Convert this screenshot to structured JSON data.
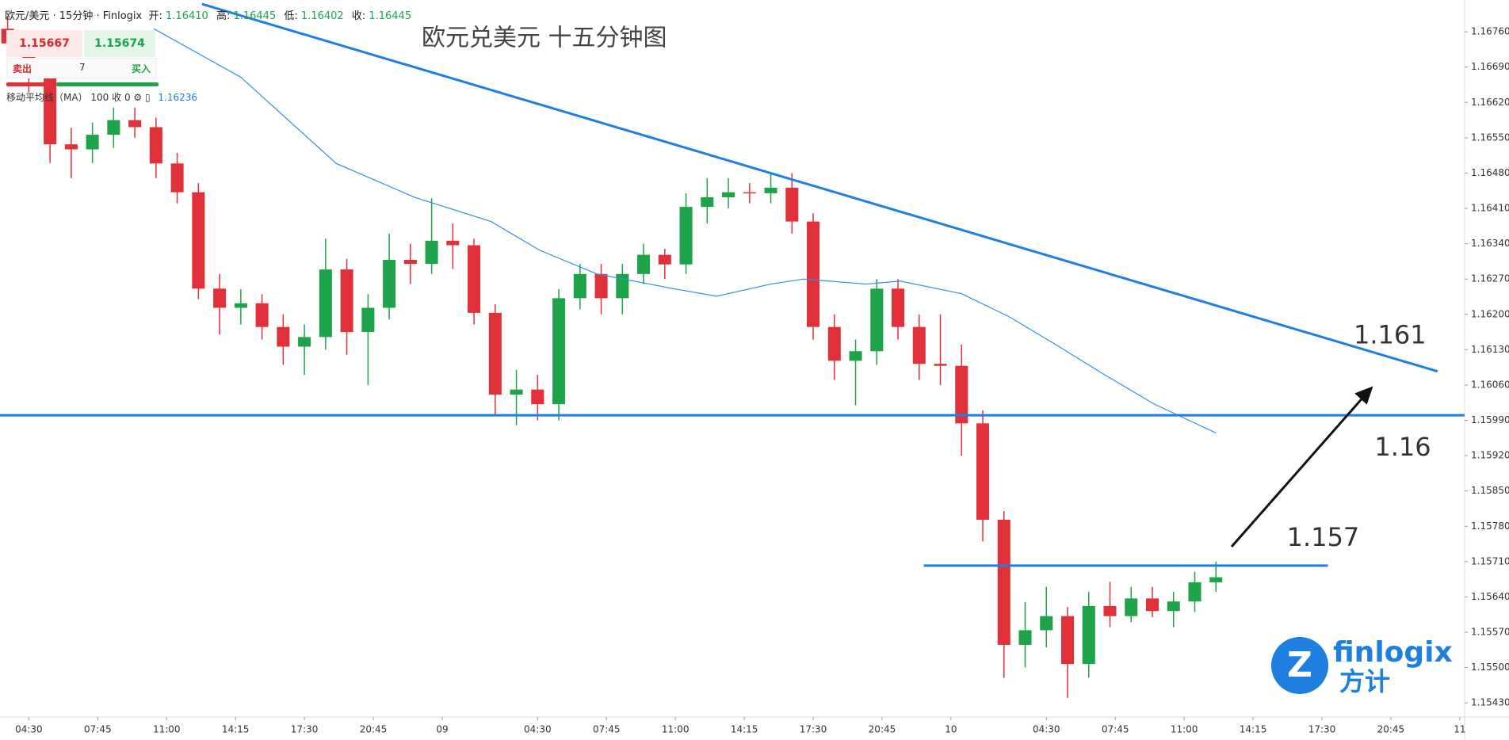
{
  "header": {
    "symbol": "欧元/美元 · 15分钟 · Finlogix",
    "open_label": "开:",
    "open": "1.16410",
    "high_label": "高:",
    "high": "1.16445",
    "low_label": "低:",
    "low": "1.16402",
    "close_label": "收:",
    "close": "1.16445"
  },
  "trade": {
    "sell_price": "1.15667",
    "buy_price": "1.15674",
    "sell": "卖出",
    "quantity": 7,
    "buy": "买入"
  },
  "indicator": {
    "name": "移动平均线（MA）",
    "params": "100 收 0",
    "value": "1.16236"
  },
  "logo": {
    "brand": "finlogix",
    "brand_cn": "方计"
  },
  "chart_data": {
    "type": "candlestick",
    "title": "欧元兑美元 十五分钟图",
    "xlim": [
      3.14,
      72.23
    ],
    "ylim": [
      1.15402,
      1.16823
    ],
    "xticks": [
      {
        "value": 4.5,
        "label": "04:30"
      },
      {
        "value": 7.75,
        "label": "07:45"
      },
      {
        "value": 11,
        "label": "11:00"
      },
      {
        "value": 14.25,
        "label": "14:15"
      },
      {
        "value": 17.5,
        "label": "17:30"
      },
      {
        "value": 20.75,
        "label": "20:45"
      },
      {
        "value": 24,
        "label": "09"
      },
      {
        "value": 28.5,
        "label": "04:30"
      },
      {
        "value": 31.75,
        "label": "07:45"
      },
      {
        "value": 35,
        "label": "11:00"
      },
      {
        "value": 38.25,
        "label": "14:15"
      },
      {
        "value": 41.5,
        "label": "17:30"
      },
      {
        "value": 44.75,
        "label": "20:45"
      },
      {
        "value": 48,
        "label": "10"
      },
      {
        "value": 52.5,
        "label": "04:30"
      },
      {
        "value": 55.75,
        "label": "07:45"
      },
      {
        "value": 59,
        "label": "11:00"
      },
      {
        "value": 62.25,
        "label": "14:15"
      },
      {
        "value": 65.5,
        "label": "17:30"
      },
      {
        "value": 68.75,
        "label": "20:45"
      },
      {
        "value": 72,
        "label": "11"
      }
    ],
    "yticks": [
      {
        "value": 1.1676,
        "label": "1.16760"
      },
      {
        "value": 1.1669,
        "label": "1.16690"
      },
      {
        "value": 1.1662,
        "label": "1.16620"
      },
      {
        "value": 1.1655,
        "label": "1.16550"
      },
      {
        "value": 1.1648,
        "label": "1.16480"
      },
      {
        "value": 1.1641,
        "label": "1.16410"
      },
      {
        "value": 1.1634,
        "label": "1.16340"
      },
      {
        "value": 1.1627,
        "label": "1.16270"
      },
      {
        "value": 1.162,
        "label": "1.16200"
      },
      {
        "value": 1.1613,
        "label": "1.16130"
      },
      {
        "value": 1.1606,
        "label": "1.16060"
      },
      {
        "value": 1.1599,
        "label": "1.15990"
      },
      {
        "value": 1.1592,
        "label": "1.15920"
      },
      {
        "value": 1.1585,
        "label": "1.15850"
      },
      {
        "value": 1.1578,
        "label": "1.15780"
      },
      {
        "value": 1.1571,
        "label": "1.15710"
      },
      {
        "value": 1.1564,
        "label": "1.15640"
      },
      {
        "value": 1.1557,
        "label": "1.15570"
      },
      {
        "value": 1.155,
        "label": "1.15500"
      },
      {
        "value": 1.1543,
        "label": "1.15430"
      }
    ],
    "candles": {
      "up_color": "#1fa34a",
      "down_color": "#e0313a",
      "x": [
        3.5,
        4.5,
        5.5,
        6.5,
        7.5,
        8.5,
        9.5,
        10.5,
        11.5,
        12.5,
        13.5,
        14.5,
        15.5,
        16.5,
        17.5,
        18.5,
        19.5,
        20.5,
        21.5,
        22.5,
        23.5,
        24.5,
        25.5,
        26.5,
        27.5,
        28.5,
        29.5,
        30.5,
        31.5,
        32.5,
        33.5,
        34.5,
        35.5,
        36.5,
        37.5,
        38.5,
        39.5,
        40.5,
        41.5,
        42.5,
        43.5,
        44.5,
        45.5,
        46.5,
        47.5,
        48.5,
        49.5,
        50.5,
        51.5,
        52.5,
        53.5,
        54.5,
        55.5,
        56.5,
        57.5,
        58.5,
        59.5,
        60.5
      ],
      "open": [
        1.16766,
        1.16737,
        1.1667,
        1.16537,
        1.16527,
        1.16556,
        1.16585,
        1.16571,
        1.16499,
        1.16442,
        1.16251,
        1.16213,
        1.16222,
        1.16175,
        1.16136,
        1.16155,
        1.16289,
        1.16165,
        1.16213,
        1.16308,
        1.163,
        1.16346,
        1.16337,
        1.16203,
        1.16041,
        1.16051,
        1.16022,
        1.16232,
        1.1628,
        1.16232,
        1.1628,
        1.16318,
        1.16299,
        1.16413,
        1.16432,
        1.16442,
        1.1644,
        1.16451,
        1.16384,
        1.16175,
        1.16108,
        1.16127,
        1.16251,
        1.16175,
        1.16102,
        1.16098,
        1.15984,
        1.15793,
        1.15545,
        1.15574,
        1.15602,
        1.15507,
        1.15622,
        1.15602,
        1.15637,
        1.15612,
        1.15631,
        1.15669
      ],
      "high": [
        1.1679,
        1.1675,
        1.1669,
        1.1657,
        1.1658,
        1.1661,
        1.1661,
        1.1659,
        1.1652,
        1.1646,
        1.1628,
        1.1625,
        1.1624,
        1.162,
        1.1618,
        1.1635,
        1.1631,
        1.1624,
        1.1636,
        1.1634,
        1.1643,
        1.1638,
        1.1635,
        1.1622,
        1.1609,
        1.1608,
        1.1625,
        1.163,
        1.163,
        1.163,
        1.1634,
        1.1633,
        1.1644,
        1.1647,
        1.1647,
        1.1646,
        1.1648,
        1.1648,
        1.164,
        1.162,
        1.1615,
        1.1627,
        1.1627,
        1.162,
        1.162,
        1.1614,
        1.1601,
        1.1581,
        1.1563,
        1.1566,
        1.1562,
        1.1565,
        1.1567,
        1.1566,
        1.1566,
        1.1565,
        1.1569,
        1.1571
      ],
      "low": [
        1.16715,
        1.1664,
        1.165,
        1.1647,
        1.165,
        1.1653,
        1.1655,
        1.1647,
        1.1642,
        1.1623,
        1.1616,
        1.1618,
        1.1615,
        1.161,
        1.1608,
        1.1613,
        1.1612,
        1.1606,
        1.1619,
        1.1626,
        1.1628,
        1.1629,
        1.1618,
        1.16,
        1.1598,
        1.1599,
        1.1599,
        1.1621,
        1.162,
        1.162,
        1.1626,
        1.1627,
        1.1628,
        1.1638,
        1.1641,
        1.1642,
        1.1642,
        1.1636,
        1.1615,
        1.1607,
        1.1602,
        1.161,
        1.1615,
        1.1607,
        1.1606,
        1.1592,
        1.1575,
        1.1548,
        1.155,
        1.1554,
        1.1544,
        1.1548,
        1.1558,
        1.1559,
        1.156,
        1.1558,
        1.1561,
        1.1565
      ],
      "close": [
        1.16737,
        1.1667,
        1.16537,
        1.16527,
        1.16556,
        1.16585,
        1.16571,
        1.16499,
        1.16442,
        1.16251,
        1.16213,
        1.16222,
        1.16175,
        1.16136,
        1.16155,
        1.16289,
        1.16165,
        1.16213,
        1.16308,
        1.163,
        1.16346,
        1.16337,
        1.16203,
        1.16041,
        1.16051,
        1.16022,
        1.16232,
        1.1628,
        1.16232,
        1.1628,
        1.16318,
        1.16299,
        1.16413,
        1.16432,
        1.16442,
        1.1644,
        1.16451,
        1.16384,
        1.16175,
        1.16108,
        1.16127,
        1.16251,
        1.16175,
        1.16102,
        1.16098,
        1.15984,
        1.15793,
        1.15545,
        1.15574,
        1.15602,
        1.15507,
        1.15622,
        1.15602,
        1.15637,
        1.15612,
        1.15631,
        1.15669,
        1.15679
      ]
    },
    "ma": {
      "color": "#2f8fe8",
      "x": [
        10.4,
        14.5,
        19.0,
        22.7,
        26.3,
        28.6,
        31.3,
        34.9,
        36.95,
        39.5,
        41.05,
        44.0,
        45.6,
        48.5,
        50.8,
        53.1,
        55.3,
        57.6,
        60.5
      ],
      "values": [
        1.16766,
        1.1667,
        1.16499,
        1.16432,
        1.16384,
        1.16327,
        1.1628,
        1.16251,
        1.16236,
        1.1626,
        1.1627,
        1.1626,
        1.16266,
        1.16241,
        1.16194,
        1.16136,
        1.16079,
        1.16022,
        1.15965
      ]
    },
    "annotations": {
      "color": "#1f7fe0",
      "lines": [
        {
          "x": [
            12.67,
            70.95
          ],
          "y": [
            1.16815,
            1.16087
          ],
          "label": "1.161"
        },
        {
          "x": [
            3.14,
            72.23
          ],
          "y": [
            1.16,
            1.16
          ],
          "label": "1.16"
        },
        {
          "x": [
            46.72,
            65.78
          ],
          "y": [
            1.15702,
            1.15702
          ],
          "label": "1.157"
        }
      ]
    }
  }
}
